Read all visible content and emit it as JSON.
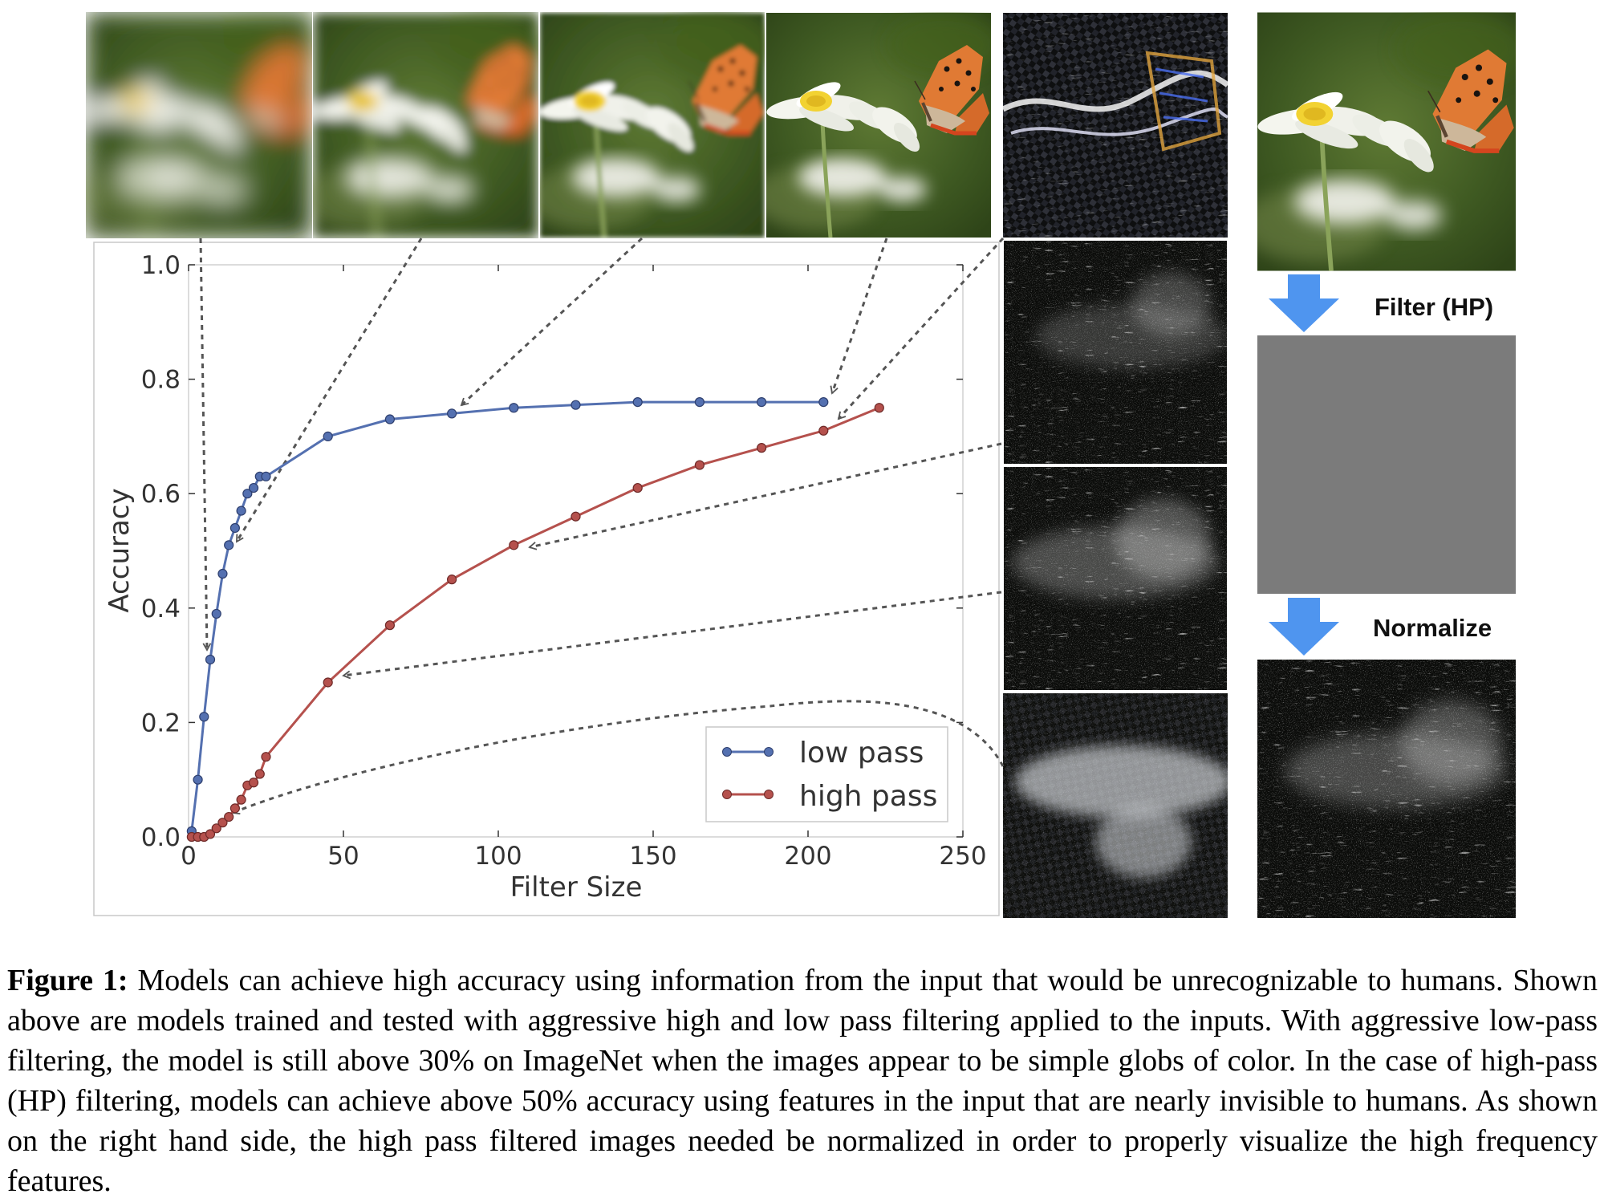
{
  "figure": {
    "pipeline_steps": [
      "Filter (HP)",
      "Normalize"
    ],
    "arrow_color": "#4f95ef"
  },
  "chart_data": {
    "type": "line",
    "xlabel": "Filter Size",
    "ylabel": "Accuracy",
    "xlim": [
      0,
      250
    ],
    "ylim": [
      0,
      1.0
    ],
    "xticks": [
      0,
      50,
      100,
      150,
      200,
      250
    ],
    "yticks": [
      0.0,
      0.2,
      0.4,
      0.6,
      0.8,
      1.0
    ],
    "ytick_labels": [
      "0.0",
      "0.2",
      "0.4",
      "0.6",
      "0.8",
      "1.0"
    ],
    "grid": false,
    "legend": "bottom-right",
    "series": [
      {
        "name": "low pass",
        "color": "#5470b0",
        "points": [
          [
            1,
            0.01
          ],
          [
            3,
            0.1
          ],
          [
            5,
            0.21
          ],
          [
            7,
            0.31
          ],
          [
            9,
            0.39
          ],
          [
            11,
            0.46
          ],
          [
            13,
            0.51
          ],
          [
            15,
            0.54
          ],
          [
            17,
            0.57
          ],
          [
            19,
            0.6
          ],
          [
            21,
            0.61
          ],
          [
            23,
            0.63
          ],
          [
            25,
            0.63
          ],
          [
            45,
            0.7
          ],
          [
            65,
            0.73
          ],
          [
            85,
            0.74
          ],
          [
            105,
            0.75
          ],
          [
            125,
            0.755
          ],
          [
            145,
            0.76
          ],
          [
            165,
            0.76
          ],
          [
            185,
            0.76
          ],
          [
            205,
            0.76
          ]
        ]
      },
      {
        "name": "high pass",
        "color": "#b5514d",
        "points": [
          [
            1,
            0.0
          ],
          [
            3,
            0.0
          ],
          [
            5,
            0.0
          ],
          [
            7,
            0.005
          ],
          [
            9,
            0.015
          ],
          [
            11,
            0.025
          ],
          [
            13,
            0.035
          ],
          [
            15,
            0.05
          ],
          [
            17,
            0.065
          ],
          [
            19,
            0.09
          ],
          [
            21,
            0.095
          ],
          [
            23,
            0.11
          ],
          [
            25,
            0.14
          ],
          [
            45,
            0.27
          ],
          [
            65,
            0.37
          ],
          [
            85,
            0.45
          ],
          [
            105,
            0.51
          ],
          [
            125,
            0.56
          ],
          [
            145,
            0.61
          ],
          [
            165,
            0.65
          ],
          [
            185,
            0.68
          ],
          [
            205,
            0.71
          ],
          [
            223,
            0.75
          ]
        ]
      }
    ]
  },
  "caption": {
    "label": "Figure 1:",
    "text": "Models can achieve high accuracy using information from the input that would be unrecognizable to humans. Shown above are models trained and tested with aggressive high and low pass filtering applied to the inputs. With aggressive low-pass filtering, the model is still above 30% on ImageNet when the images appear to be simple globs of color. In the case of high-pass (HP) filtering, models can achieve above 50% accuracy using features in the input that are nearly invisible to humans. As shown on the right hand side, the high pass filtered images needed be normalized in order to properly visualize the high frequency features."
  }
}
